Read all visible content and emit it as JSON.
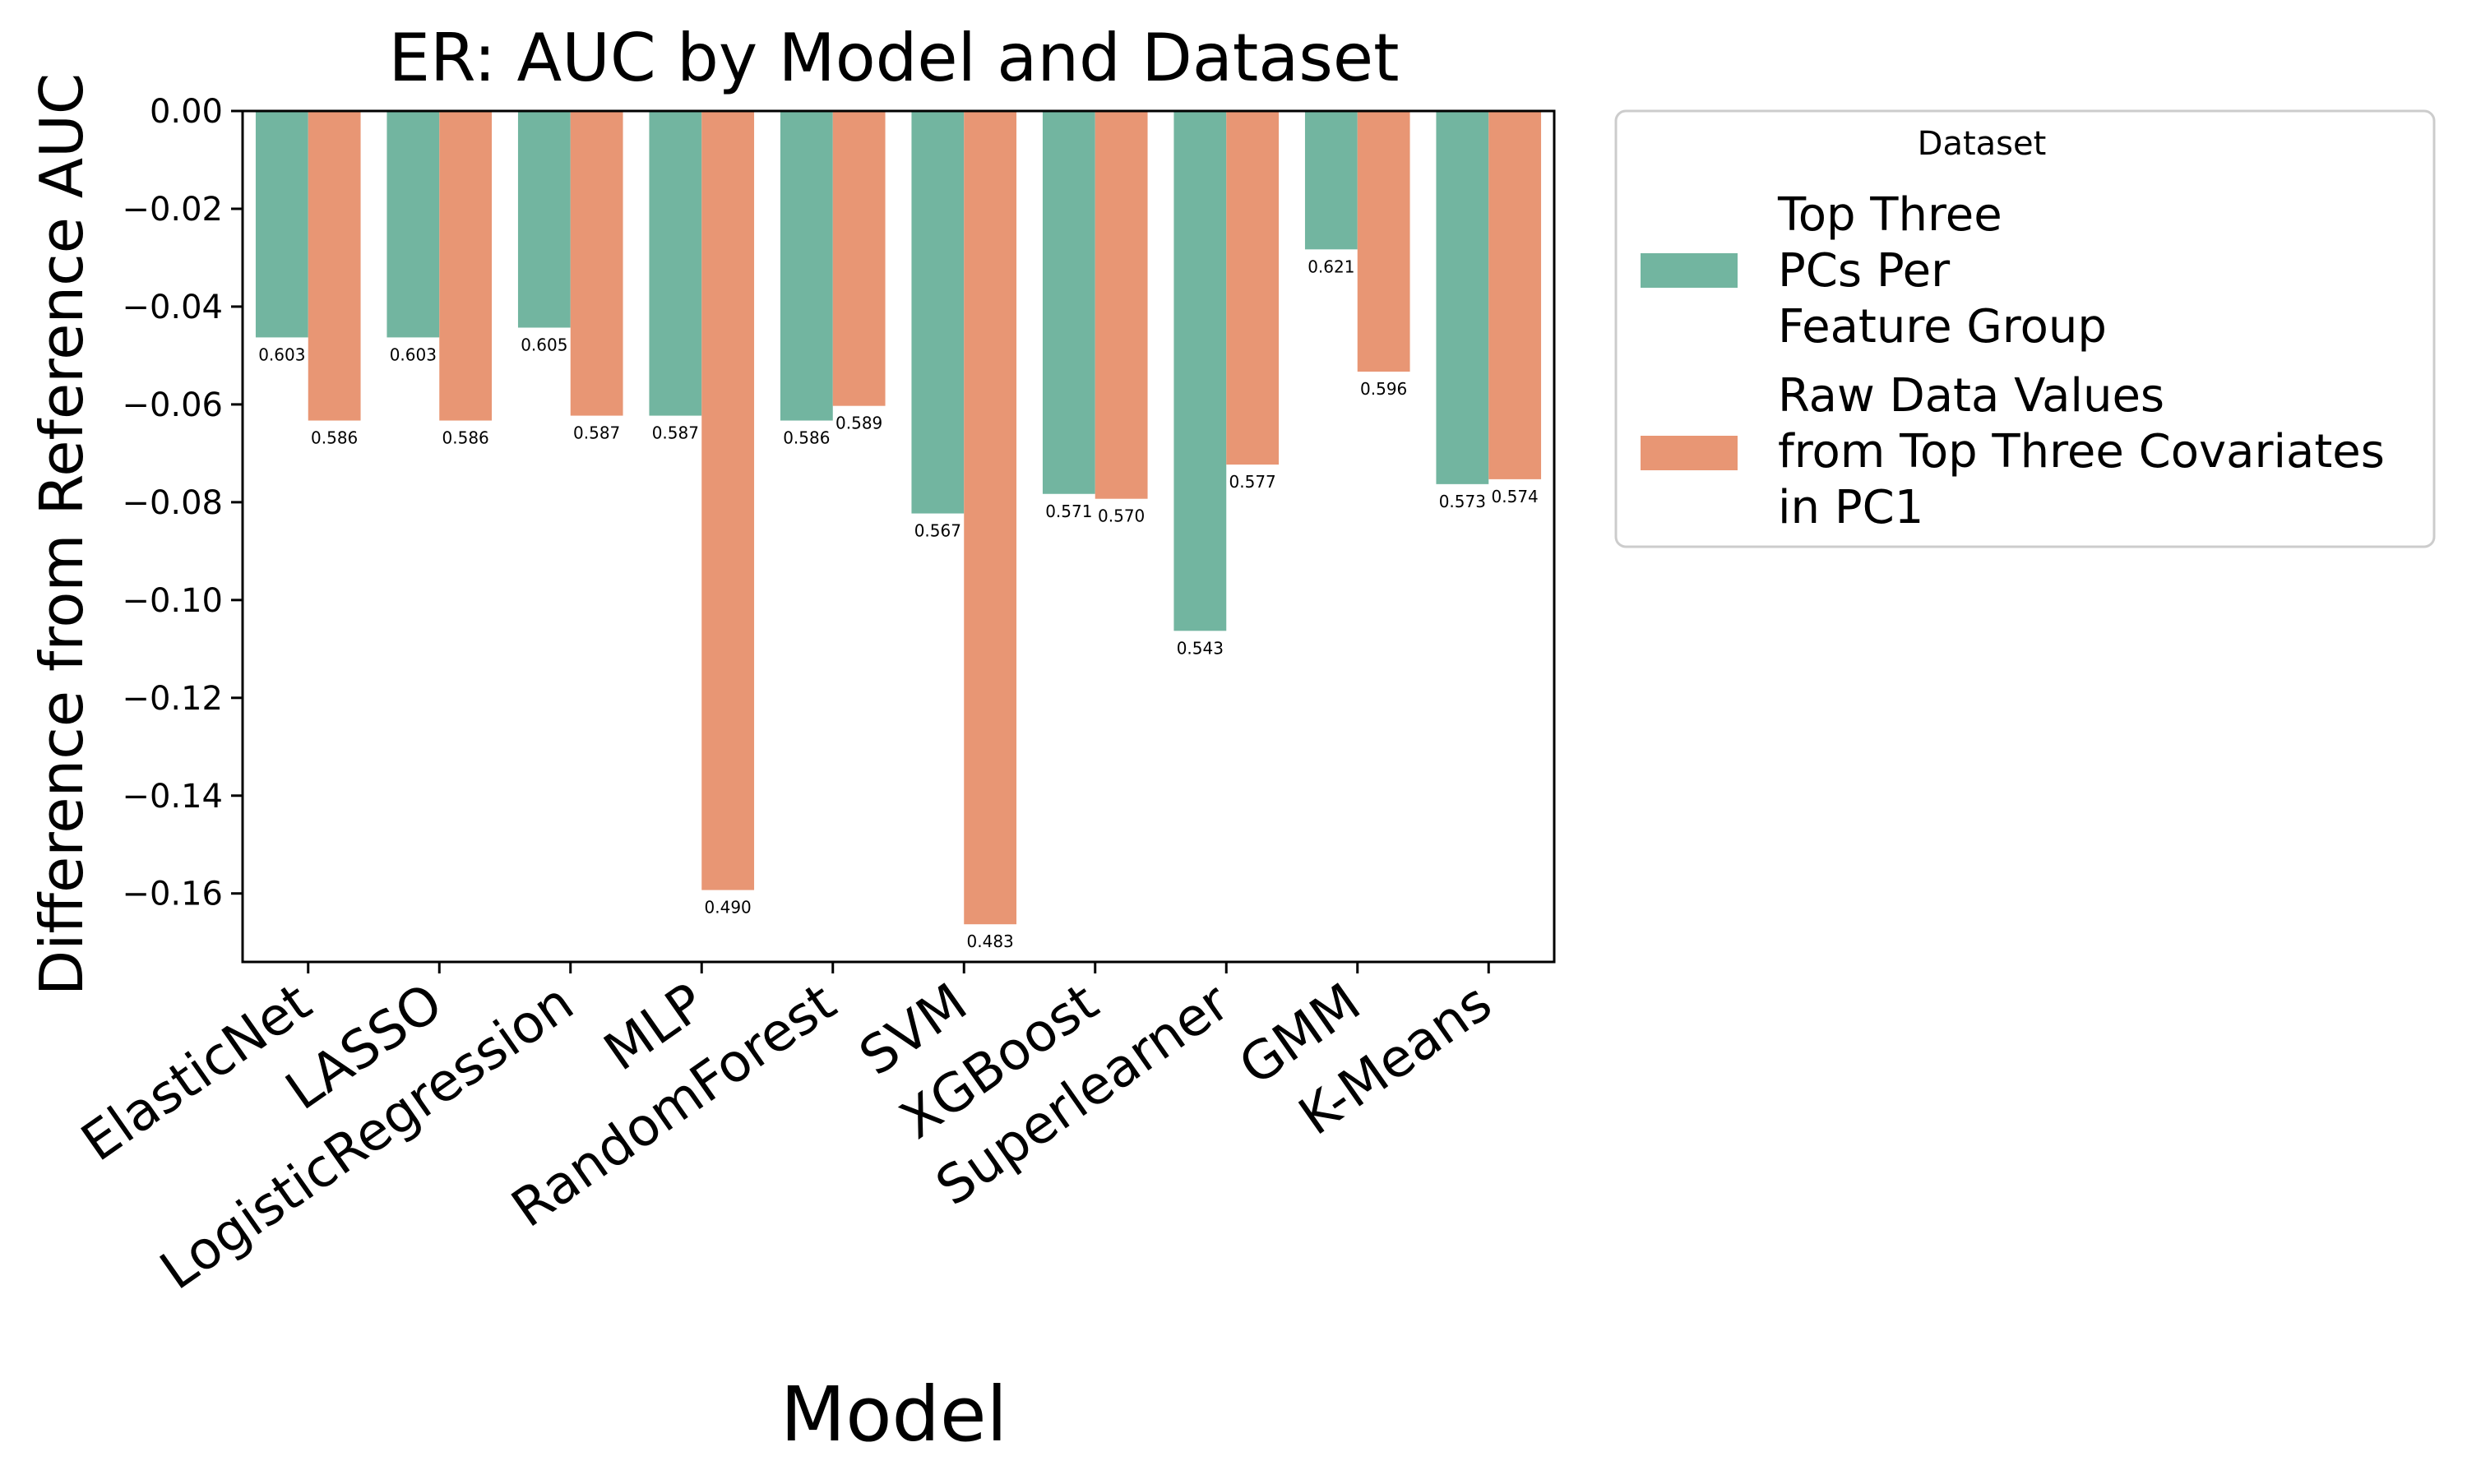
{
  "chart_data": {
    "type": "bar",
    "title": "ER: AUC by Model and Dataset",
    "xlabel": "Model",
    "ylabel": "Difference from Reference AUC",
    "ylim": [
      -0.174,
      0.0
    ],
    "yticks": [
      0.0,
      -0.02,
      -0.04,
      -0.06,
      -0.08,
      -0.1,
      -0.12,
      -0.14,
      -0.16
    ],
    "ytick_labels": [
      "0.00",
      "−0.02",
      "−0.04",
      "−0.06",
      "−0.08",
      "−0.10",
      "−0.12",
      "−0.14",
      "−0.16"
    ],
    "categories": [
      "ElasticNet",
      "LASSO",
      "LogisticRegression",
      "MLP",
      "RandomForest",
      "SVM",
      "XGBoost",
      "Superlearner",
      "GMM",
      "K-Means"
    ],
    "reference_line": 0.0,
    "grid": false,
    "legend": {
      "title": "Dataset",
      "placement": "outside-right"
    },
    "series": [
      {
        "name": "Top Three\nPCs Per\nFeature Group",
        "color": "#72b5a0",
        "values": [
          -0.0463,
          -0.0463,
          -0.0443,
          -0.0623,
          -0.0633,
          -0.0823,
          -0.0783,
          -0.1063,
          -0.0283,
          -0.0763
        ],
        "labels": [
          "0.603",
          "0.603",
          "0.605",
          "0.587",
          "0.586",
          "0.567",
          "0.571",
          "0.543",
          "0.621",
          "0.573"
        ]
      },
      {
        "name": "Raw Data Values\nfrom Top Three Covariates\nin PC1",
        "color": "#e89674",
        "values": [
          -0.0633,
          -0.0633,
          -0.0623,
          -0.1593,
          -0.0603,
          -0.1663,
          -0.0793,
          -0.0723,
          -0.0533,
          -0.0753
        ],
        "labels": [
          "0.586",
          "0.586",
          "0.587",
          "0.490",
          "0.589",
          "0.483",
          "0.570",
          "0.577",
          "0.596",
          "0.574"
        ]
      }
    ]
  }
}
